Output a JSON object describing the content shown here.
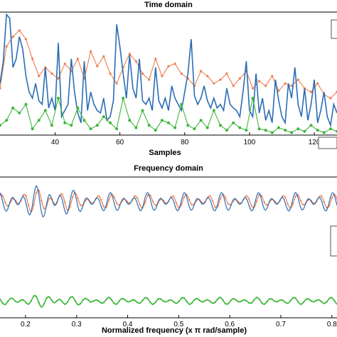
{
  "chart_data": [
    {
      "type": "line",
      "title": "Time domain",
      "xlabel": "Samples",
      "ylabel": "",
      "xlim": [
        23,
        127
      ],
      "ylim": [
        0,
        1
      ],
      "xticks": [
        40,
        60,
        80,
        100,
        120
      ],
      "series": [
        {
          "color": "#ef7d4f",
          "marker": "dot",
          "x": [
            23,
            25,
            27,
            29,
            31,
            33,
            35,
            37,
            39,
            41,
            43,
            45,
            47,
            49,
            51,
            53,
            55,
            57,
            59,
            61,
            63,
            65,
            67,
            69,
            71,
            73,
            75,
            77,
            79,
            81,
            83,
            85,
            87,
            89,
            91,
            93,
            95,
            97,
            99,
            101,
            103,
            105,
            107,
            109,
            111,
            113,
            115,
            117,
            119,
            121,
            123,
            125,
            127
          ],
          "values": [
            0.38,
            0.72,
            0.8,
            0.85,
            0.78,
            0.62,
            0.48,
            0.55,
            0.5,
            0.46,
            0.58,
            0.52,
            0.62,
            0.46,
            0.68,
            0.56,
            0.64,
            0.5,
            0.42,
            0.55,
            0.66,
            0.6,
            0.5,
            0.45,
            0.62,
            0.48,
            0.56,
            0.58,
            0.5,
            0.46,
            0.4,
            0.52,
            0.48,
            0.42,
            0.45,
            0.5,
            0.4,
            0.46,
            0.52,
            0.38,
            0.44,
            0.4,
            0.48,
            0.36,
            0.42,
            0.4,
            0.45,
            0.38,
            0.35,
            0.42,
            0.33,
            0.3,
            0.35
          ]
        },
        {
          "color": "#2a6db5",
          "marker": "none",
          "x": [
            23,
            24,
            25,
            26,
            27,
            28,
            29,
            30,
            31,
            32,
            33,
            34,
            35,
            36,
            37,
            38,
            39,
            40,
            41,
            42,
            43,
            44,
            45,
            46,
            47,
            48,
            49,
            50,
            51,
            52,
            53,
            54,
            55,
            56,
            57,
            58,
            59,
            60,
            61,
            62,
            63,
            64,
            65,
            66,
            67,
            68,
            69,
            70,
            71,
            72,
            73,
            74,
            75,
            76,
            77,
            78,
            79,
            80,
            81,
            82,
            83,
            84,
            85,
            86,
            87,
            88,
            89,
            90,
            91,
            92,
            93,
            94,
            95,
            96,
            97,
            98,
            99,
            100,
            101,
            102,
            103,
            104,
            105,
            106,
            107,
            108,
            109,
            110,
            111,
            112,
            113,
            114,
            115,
            116,
            117,
            118,
            119,
            120,
            121,
            122,
            123,
            124,
            125,
            126,
            127
          ],
          "values": [
            0.42,
            0.6,
            0.98,
            0.95,
            0.55,
            0.62,
            0.8,
            0.7,
            0.48,
            0.35,
            0.3,
            0.42,
            0.28,
            0.25,
            0.55,
            0.22,
            0.3,
            0.2,
            0.75,
            0.15,
            0.2,
            0.25,
            0.62,
            0.35,
            0.18,
            0.1,
            0.6,
            0.2,
            0.35,
            0.25,
            0.2,
            0.18,
            0.3,
            0.12,
            0.15,
            0.28,
            0.9,
            0.72,
            0.5,
            0.3,
            0.65,
            0.38,
            0.3,
            0.62,
            0.28,
            0.25,
            0.3,
            0.2,
            0.55,
            0.28,
            0.22,
            0.3,
            0.2,
            0.4,
            0.3,
            0.25,
            0.2,
            0.35,
            0.5,
            0.78,
            0.32,
            0.25,
            0.3,
            0.4,
            0.28,
            0.22,
            0.3,
            0.22,
            0.25,
            0.2,
            0.38,
            0.25,
            0.22,
            0.2,
            0.15,
            0.35,
            0.6,
            0.2,
            0.15,
            0.5,
            0.18,
            0.3,
            0.12,
            0.2,
            0.1,
            0.45,
            0.28,
            0.15,
            0.1,
            0.42,
            0.3,
            0.55,
            0.25,
            0.15,
            0.38,
            0.12,
            0.25,
            0.45,
            0.1,
            0.2,
            0.35,
            0.15,
            0.08,
            0.25,
            0.18
          ]
        },
        {
          "color": "#3fb63a",
          "marker": "dot",
          "x": [
            23,
            25,
            27,
            29,
            31,
            33,
            35,
            37,
            39,
            41,
            43,
            45,
            47,
            49,
            51,
            53,
            55,
            57,
            59,
            61,
            63,
            65,
            67,
            69,
            71,
            73,
            75,
            77,
            79,
            81,
            83,
            85,
            87,
            89,
            91,
            93,
            95,
            97,
            99,
            101,
            103,
            105,
            107,
            109,
            111,
            113,
            115,
            117,
            119,
            121,
            123,
            125,
            127
          ],
          "values": [
            0.08,
            0.12,
            0.22,
            0.18,
            0.25,
            0.05,
            0.12,
            0.2,
            0.08,
            0.3,
            0.1,
            0.08,
            0.22,
            0.12,
            0.05,
            0.08,
            0.15,
            0.1,
            0.05,
            0.3,
            0.12,
            0.06,
            0.2,
            0.08,
            0.04,
            0.12,
            0.1,
            0.06,
            0.25,
            0.08,
            0.05,
            0.12,
            0.06,
            0.2,
            0.08,
            0.04,
            0.1,
            0.06,
            0.04,
            0.3,
            0.05,
            0.04,
            0.02,
            0.06,
            0.04,
            0.02,
            0.05,
            0.03,
            0.08,
            0.04,
            0.02,
            0.05,
            0.03
          ]
        }
      ]
    },
    {
      "type": "line",
      "title": "Frequency domain",
      "xlabel": "Normalized frequency (x π rad/sample)",
      "ylabel": "",
      "xlim": [
        0.15,
        0.81
      ],
      "ylim": [
        0,
        1
      ],
      "xticks": [
        0.2,
        0.3,
        0.4,
        0.5,
        0.6,
        0.7,
        0.8
      ],
      "xtick_labels": [
        "0.2",
        "0.3",
        "0.4",
        "0.5",
        "0.6",
        "0.7",
        "0.8"
      ],
      "series": [
        {
          "color": "#ef7d4f",
          "marker": "dot",
          "base": 0.83,
          "amplitude": 0.05,
          "x": [
            0.15,
            0.81
          ]
        },
        {
          "color": "#2a6db5",
          "marker": "none",
          "base": 0.82,
          "amplitude": 0.07,
          "x": [
            0.15,
            0.81
          ]
        },
        {
          "color": "#3fb63a",
          "marker": "dot",
          "base": 0.12,
          "amplitude": 0.025,
          "x": [
            0.15,
            0.81
          ]
        }
      ]
    }
  ]
}
